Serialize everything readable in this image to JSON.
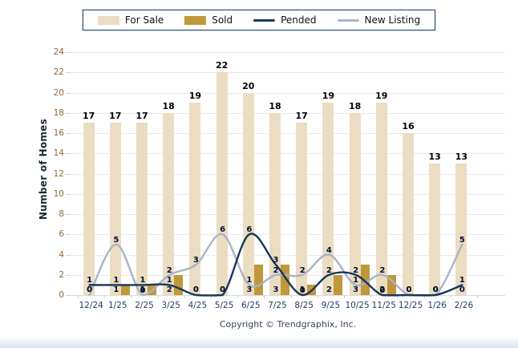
{
  "page": {
    "footer": "Copyright © Trendgraphix, Inc."
  },
  "colors": {
    "for_sale": "#ebddc1",
    "sold": "#c0983b",
    "pended": "#17365d",
    "new_listing": "#a9b2c8",
    "grid": "#e9eaea",
    "y_tick_text": "#8f6b3f",
    "x_tick_text": "#1f3a5f"
  },
  "chart_data": {
    "type": "bar",
    "subtype": "grouped bars with smoothed overlay lines",
    "title": "",
    "xlabel": "",
    "ylabel": "Number of Homes",
    "ylim": [
      0,
      24
    ],
    "ytick_step": 2,
    "grid": true,
    "legend_position": "top",
    "categories": [
      "12/24",
      "1/25",
      "2/25",
      "3/25",
      "4/25",
      "5/25",
      "6/25",
      "7/25",
      "8/25",
      "9/25",
      "10/25",
      "11/25",
      "12/25",
      "1/26",
      "2/26"
    ],
    "series": [
      {
        "name": "For Sale",
        "type": "bar",
        "color": "#ebddc1",
        "values": [
          17,
          17,
          17,
          18,
          19,
          22,
          20,
          18,
          17,
          19,
          18,
          19,
          16,
          13,
          13
        ]
      },
      {
        "name": "Sold",
        "type": "bar",
        "color": "#c0983b",
        "values": [
          0,
          1,
          1,
          2,
          0,
          0,
          3,
          3,
          1,
          2,
          3,
          2,
          0,
          0,
          0
        ]
      },
      {
        "name": "Pended",
        "type": "line",
        "color": "#17365d",
        "values": [
          1,
          1,
          1,
          1,
          0,
          0,
          6,
          3,
          0,
          2,
          2,
          0,
          0,
          0,
          1
        ]
      },
      {
        "name": "New Listing",
        "type": "line",
        "color": "#a9b2c8",
        "values": [
          0,
          5,
          0,
          2,
          3,
          6,
          1,
          2,
          2,
          4,
          1,
          2,
          0,
          0,
          5
        ]
      }
    ]
  }
}
